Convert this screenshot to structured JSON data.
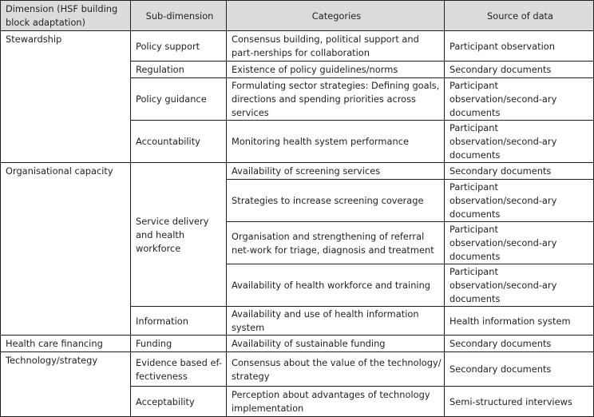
{
  "table": {
    "headers": [
      "Dimension (HSF building block adaptation)",
      "Sub-dimension",
      "Categories",
      "Source of data"
    ],
    "dimensions": {
      "stewardship": "Stewardship",
      "organisational_capacity": "Organisational capacity",
      "health_care_financing": "Health care financing",
      "technology_strategy": "Technology/strategy"
    },
    "subdimensions": {
      "policy_support": "Policy support",
      "regulation": "Regulation",
      "policy_guidance": "Policy guidance",
      "accountability": "Accountability",
      "service_delivery": "Service delivery and health workforce",
      "information": "Information",
      "funding": "Funding",
      "evidence_based": "Evidence based ef-fectiveness",
      "acceptability": "Acceptability"
    },
    "rows": [
      {
        "category": "Consensus building, political support and part-nerships for collaboration",
        "source": "Participant observation"
      },
      {
        "category": "Existence of policy guidelines/norms",
        "source": "Secondary documents"
      },
      {
        "category": "Formulating sector strategies: Defining goals, directions and spending priorities across services",
        "source": "Participant observation/second-ary documents"
      },
      {
        "category": "Monitoring health system performance",
        "source": "Participant observation/second-ary documents"
      },
      {
        "category": "Availability of screening services",
        "source": "Secondary documents"
      },
      {
        "category": "Strategies to increase screening coverage",
        "source": "Participant observation/second-ary documents"
      },
      {
        "category": "Organisation and strengthening of referral net-work for triage, diagnosis and treatment",
        "source": "Participant observation/second-ary documents"
      },
      {
        "category": "Availability of health workforce and training",
        "source": "Participant observation/second-ary documents"
      },
      {
        "category": "Availability and use of health information system",
        "source": "Health information system"
      },
      {
        "category": "Availability of sustainable funding",
        "source": "Secondary documents"
      },
      {
        "category": "Consensus about the value of the technology/ strategy",
        "source": "Secondary documents"
      },
      {
        "category": "Perception about advantages of technology implementation",
        "source": "Semi-structured interviews"
      }
    ]
  }
}
